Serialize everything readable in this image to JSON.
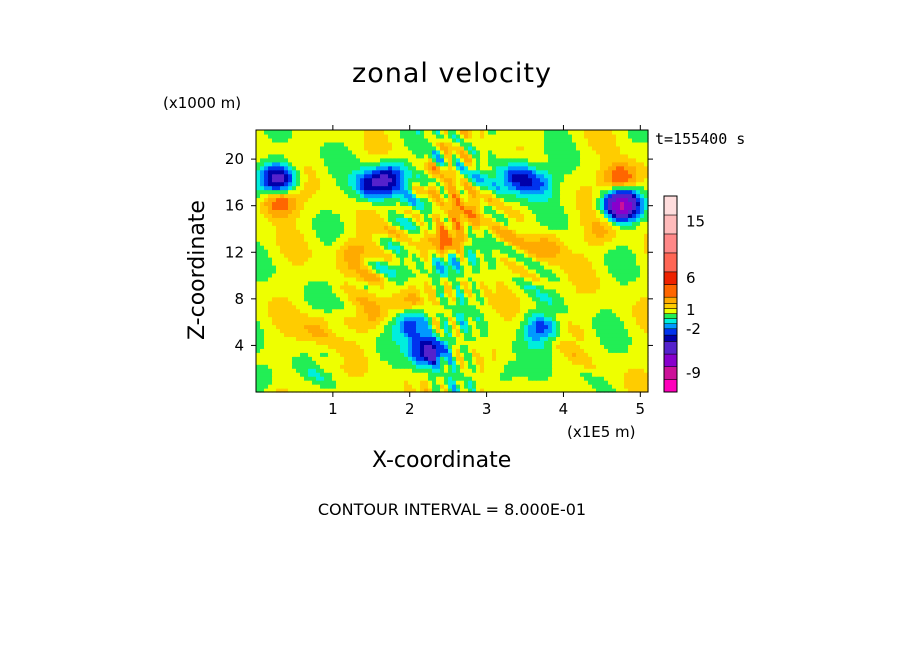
{
  "chart_data": {
    "type": "heatmap",
    "title": "zonal velocity",
    "xlabel": "X-coordinate",
    "ylabel": "Z-coordinate",
    "x_unit": "(x1E5 m)",
    "y_unit": "(x1000 m)",
    "time_label": "t=155400 s",
    "footer": "CONTOUR INTERVAL = 8.000E-01",
    "xlim": [
      0,
      5.1
    ],
    "ylim": [
      0,
      22.5
    ],
    "x_ticks": [
      "1",
      "2",
      "3",
      "4",
      "5"
    ],
    "x_tick_values": [
      1,
      2,
      3,
      4,
      5
    ],
    "y_ticks": [
      "4",
      "8",
      "12",
      "16",
      "20"
    ],
    "y_tick_values": [
      4,
      8,
      12,
      16,
      20
    ],
    "colorbar": {
      "labels": [
        "15",
        "6",
        "1",
        "-2",
        "-9"
      ],
      "label_values": [
        15,
        6,
        1,
        -2,
        -9
      ],
      "levels": [
        -12,
        -10,
        -8,
        -6,
        -4,
        -3,
        -2,
        -1.2,
        -0.4,
        0.4,
        1.2,
        2,
        3,
        5,
        7,
        10,
        13,
        16,
        19
      ],
      "colors": [
        "#ff00bb",
        "#cc1199",
        "#8800cc",
        "#5522cc",
        "#0000aa",
        "#0033ee",
        "#0099ff",
        "#00eedd",
        "#22ee55",
        "#eeff00",
        "#ffcc00",
        "#ffaa00",
        "#ff6600",
        "#ee2200",
        "#ff6655",
        "#ff8888",
        "#ffbbbb",
        "#ffdddd"
      ]
    },
    "features": [
      {
        "x": 0.3,
        "z": 18.3,
        "v": -6
      },
      {
        "x": 0.3,
        "z": 16.4,
        "v": 4
      },
      {
        "x": 4.75,
        "z": 16.1,
        "v": -9
      },
      {
        "x": 4.75,
        "z": 18.4,
        "v": 4
      },
      {
        "x": 1.5,
        "z": 17.8,
        "v": -4
      },
      {
        "x": 1.75,
        "z": 18.5,
        "v": -4
      },
      {
        "x": 3.4,
        "z": 18.6,
        "v": -4
      },
      {
        "x": 3.65,
        "z": 17.9,
        "v": -3
      },
      {
        "x": 2.25,
        "z": 3.6,
        "v": -6
      },
      {
        "x": 2.05,
        "z": 5.9,
        "v": -4
      },
      {
        "x": 2.0,
        "z": 8.0,
        "v": 2
      },
      {
        "x": 2.5,
        "z": 13.0,
        "v": 3
      },
      {
        "x": 2.75,
        "z": 15.5,
        "v": 2
      },
      {
        "x": 1.25,
        "z": 12.0,
        "v": 2
      },
      {
        "x": 3.8,
        "z": 12.5,
        "v": 2
      },
      {
        "x": 2.45,
        "z": 11.0,
        "v": -3
      },
      {
        "x": 0.1,
        "z": 1.2,
        "v": -1.5
      },
      {
        "x": 3.2,
        "z": 1.5,
        "v": -1.3
      },
      {
        "x": 3.7,
        "z": 5.5,
        "v": -3
      },
      {
        "x": 1.5,
        "z": 6.5,
        "v": 1.5
      },
      {
        "x": 0.8,
        "z": 5.5,
        "v": 1.6
      },
      {
        "x": 4.5,
        "z": 13.8,
        "v": 1.5
      }
    ]
  }
}
